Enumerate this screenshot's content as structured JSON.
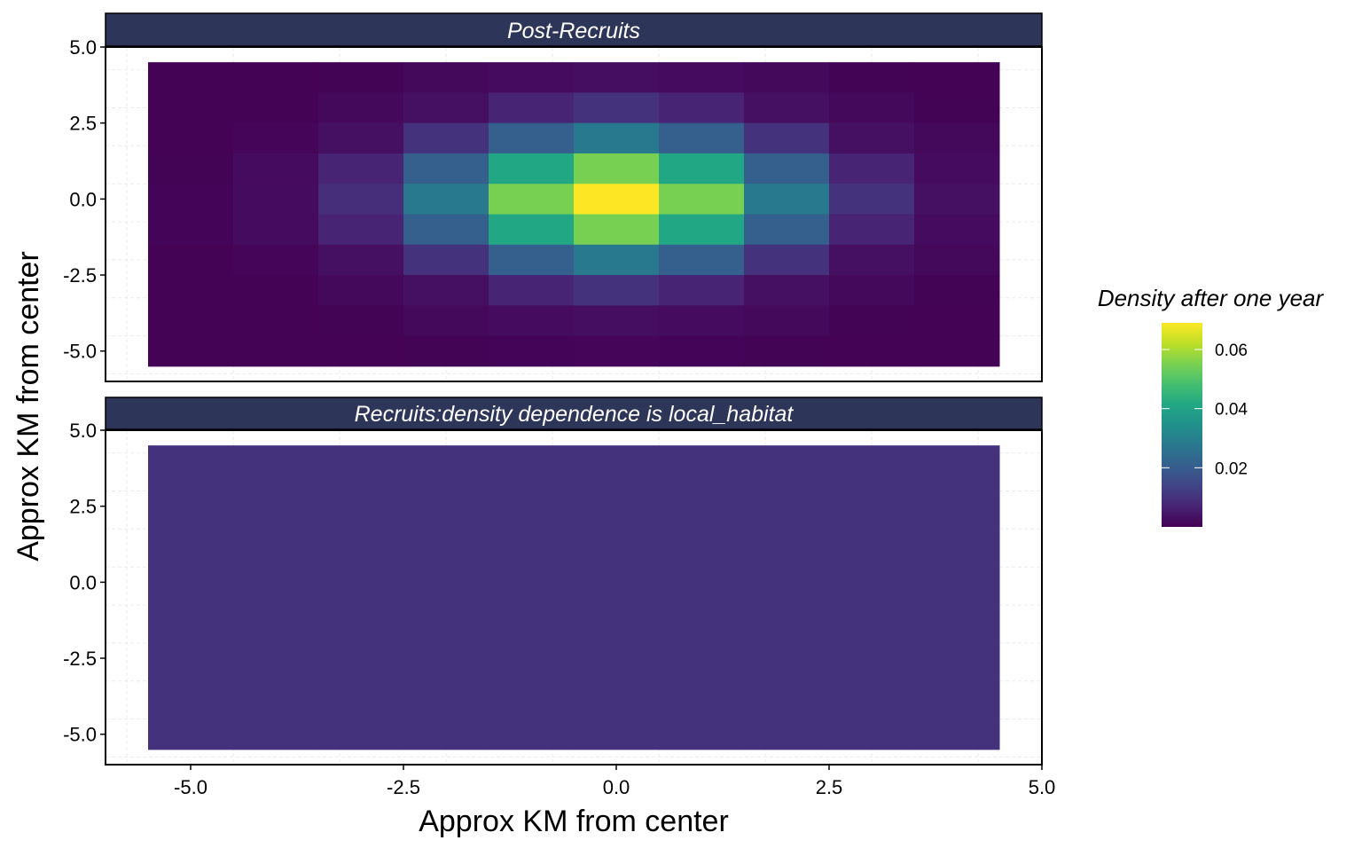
{
  "chart_data": {
    "type": "heatmap",
    "xlabel": "Approx KM from center",
    "ylabel": "Approx KM from center",
    "xlim": [
      -6,
      5
    ],
    "ylim": [
      -6,
      5
    ],
    "x_ticks": [
      "-5.0",
      "-2.5",
      "0.0",
      "2.5",
      "5.0"
    ],
    "x_tick_values": [
      -5,
      -2.5,
      0,
      2.5,
      5
    ],
    "y_ticks": [
      "5.0",
      "2.5",
      "0.0",
      "-2.5",
      "-5.0"
    ],
    "y_tick_values": [
      5,
      2.5,
      0,
      -2.5,
      -5
    ],
    "grid": true,
    "x_centers": [
      -5,
      -4,
      -3,
      -2,
      -1,
      0,
      1,
      2,
      3,
      4
    ],
    "y_centers": [
      4,
      3,
      2,
      1,
      0,
      -1,
      -2,
      -3,
      -4,
      -5
    ],
    "legend": {
      "title": "Density after one year",
      "placement": "right",
      "range": [
        0,
        0.069
      ],
      "ticks": [
        "0.06",
        "0.04",
        "0.02"
      ],
      "tick_values": [
        0.06,
        0.04,
        0.02
      ],
      "colormap": "viridis"
    },
    "panels": [
      {
        "title": "Post-Recruits",
        "values": [
          [
            0.0003,
            0.0003,
            0.0005,
            0.0015,
            0.002,
            0.0025,
            0.002,
            0.0015,
            0.0005,
            0.0003
          ],
          [
            0.0003,
            0.0003,
            0.0015,
            0.003,
            0.007,
            0.01,
            0.007,
            0.003,
            0.0015,
            0.0005
          ],
          [
            0.0003,
            0.001,
            0.003,
            0.01,
            0.021,
            0.028,
            0.021,
            0.01,
            0.003,
            0.0015
          ],
          [
            0.0005,
            0.002,
            0.007,
            0.021,
            0.041,
            0.055,
            0.041,
            0.021,
            0.007,
            0.002
          ],
          [
            0.0008,
            0.002,
            0.009,
            0.028,
            0.055,
            0.069,
            0.055,
            0.028,
            0.01,
            0.003
          ],
          [
            0.0008,
            0.002,
            0.007,
            0.021,
            0.041,
            0.055,
            0.041,
            0.021,
            0.007,
            0.002
          ],
          [
            0.0003,
            0.001,
            0.003,
            0.01,
            0.021,
            0.028,
            0.021,
            0.01,
            0.003,
            0.0015
          ],
          [
            0.0003,
            0.0003,
            0.0015,
            0.003,
            0.007,
            0.01,
            0.007,
            0.003,
            0.0015,
            0.0005
          ],
          [
            0.0003,
            0.0003,
            0.0005,
            0.0015,
            0.002,
            0.0025,
            0.002,
            0.0015,
            0.0005,
            0.0003
          ],
          [
            0.0003,
            0.0003,
            0.0003,
            0.0005,
            0.0008,
            0.001,
            0.0008,
            0.0005,
            0.0003,
            0.0003
          ]
        ]
      },
      {
        "title": "Recruits:density dependence is local_habitat",
        "values": "uniform",
        "uniform_value": 0.01
      }
    ],
    "colors": {
      "strip": "#2d3658",
      "grid": "#ebebeb"
    }
  }
}
